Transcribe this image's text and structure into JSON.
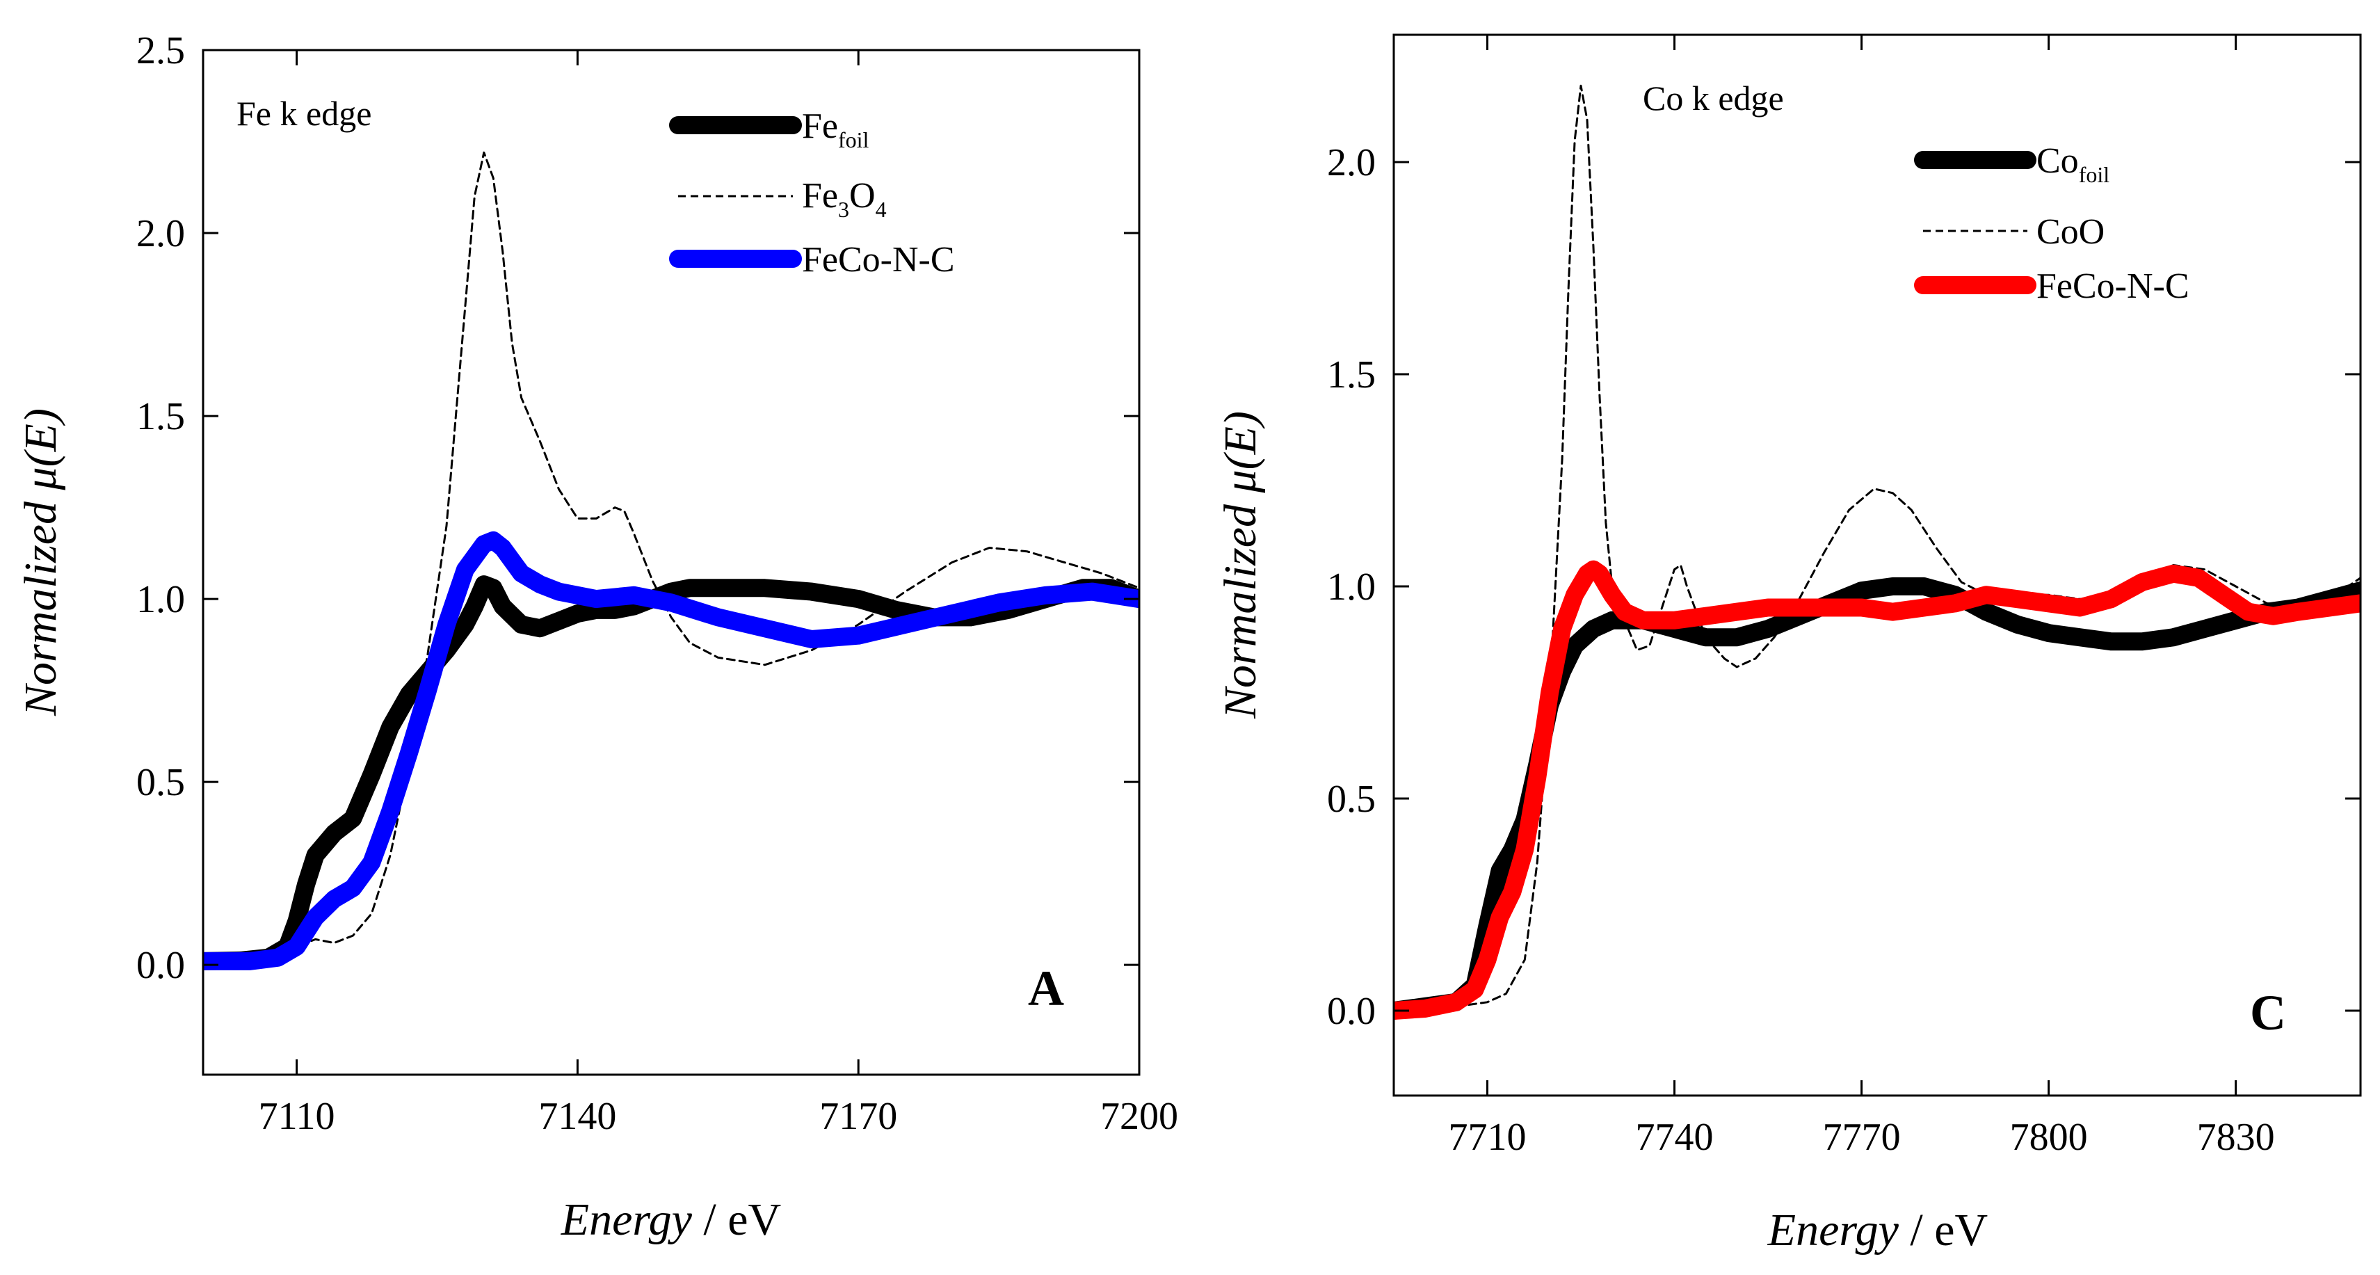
{
  "chart_data": [
    {
      "type": "line",
      "panel_label": "A",
      "annotation": "Fe k edge",
      "xlabel_italic": "Energy",
      "xlabel_unit": " / eV",
      "ylabel": "Normalized μ(E)",
      "xlim": [
        7100,
        7200
      ],
      "ylim": [
        -0.3,
        2.5
      ],
      "xticks": [
        7110,
        7140,
        7170,
        7200
      ],
      "xticklabels": [
        "7110",
        "7140",
        "7170",
        "7200"
      ],
      "yticks": [
        0.0,
        0.5,
        1.0,
        1.5,
        2.0,
        2.5
      ],
      "yticklabels": [
        "0.0",
        "0.5",
        "1.0",
        "1.5",
        "2.0",
        "2.5"
      ],
      "legend_position": "top-right",
      "series": [
        {
          "name": "Fe_foil",
          "legend_main": "Fe",
          "legend_sub": "foil",
          "legend_sub2": "",
          "legend_tail": "",
          "color": "#000000",
          "style": "thick",
          "points": [
            [
              7100,
              0.01
            ],
            [
              7104,
              0.012
            ],
            [
              7107,
              0.02
            ],
            [
              7109,
              0.05
            ],
            [
              7110,
              0.12
            ],
            [
              7111,
              0.22
            ],
            [
              7112,
              0.3
            ],
            [
              7114,
              0.36
            ],
            [
              7116,
              0.4
            ],
            [
              7118,
              0.52
            ],
            [
              7120,
              0.65
            ],
            [
              7122,
              0.74
            ],
            [
              7124,
              0.8
            ],
            [
              7126,
              0.86
            ],
            [
              7128,
              0.93
            ],
            [
              7129,
              0.98
            ],
            [
              7130,
              1.04
            ],
            [
              7131,
              1.03
            ],
            [
              7132,
              0.98
            ],
            [
              7134,
              0.93
            ],
            [
              7136,
              0.92
            ],
            [
              7138,
              0.94
            ],
            [
              7140,
              0.96
            ],
            [
              7142,
              0.97
            ],
            [
              7144,
              0.97
            ],
            [
              7146,
              0.98
            ],
            [
              7148,
              1.0
            ],
            [
              7150,
              1.02
            ],
            [
              7152,
              1.03
            ],
            [
              7155,
              1.03
            ],
            [
              7160,
              1.03
            ],
            [
              7165,
              1.02
            ],
            [
              7170,
              1.0
            ],
            [
              7174,
              0.97
            ],
            [
              7178,
              0.95
            ],
            [
              7182,
              0.95
            ],
            [
              7186,
              0.97
            ],
            [
              7190,
              1.0
            ],
            [
              7194,
              1.03
            ],
            [
              7197,
              1.03
            ],
            [
              7200,
              1.0
            ]
          ]
        },
        {
          "name": "Fe3O4",
          "legend_main": "Fe",
          "legend_sub": "3",
          "legend_sub2": "4",
          "legend_tail": "O",
          "color": "#000000",
          "style": "dashed",
          "points": [
            [
              7100,
              0.01
            ],
            [
              7105,
              0.01
            ],
            [
              7108,
              0.02
            ],
            [
              7110,
              0.05
            ],
            [
              7112,
              0.07
            ],
            [
              7114,
              0.06
            ],
            [
              7116,
              0.08
            ],
            [
              7118,
              0.14
            ],
            [
              7120,
              0.3
            ],
            [
              7122,
              0.55
            ],
            [
              7124,
              0.85
            ],
            [
              7126,
              1.2
            ],
            [
              7127,
              1.5
            ],
            [
              7128,
              1.8
            ],
            [
              7129,
              2.1
            ],
            [
              7130,
              2.22
            ],
            [
              7131,
              2.15
            ],
            [
              7132,
              1.95
            ],
            [
              7133,
              1.7
            ],
            [
              7134,
              1.55
            ],
            [
              7136,
              1.43
            ],
            [
              7138,
              1.3
            ],
            [
              7140,
              1.22
            ],
            [
              7142,
              1.22
            ],
            [
              7144,
              1.25
            ],
            [
              7145,
              1.24
            ],
            [
              7146,
              1.18
            ],
            [
              7148,
              1.05
            ],
            [
              7150,
              0.95
            ],
            [
              7152,
              0.88
            ],
            [
              7155,
              0.84
            ],
            [
              7160,
              0.82
            ],
            [
              7165,
              0.86
            ],
            [
              7170,
              0.93
            ],
            [
              7175,
              1.02
            ],
            [
              7180,
              1.1
            ],
            [
              7184,
              1.14
            ],
            [
              7188,
              1.13
            ],
            [
              7192,
              1.1
            ],
            [
              7196,
              1.07
            ],
            [
              7200,
              1.03
            ]
          ]
        },
        {
          "name": "FeCo-N-C",
          "legend_main": "FeCo-N-C",
          "legend_sub": "",
          "legend_sub2": "",
          "legend_tail": "",
          "color": "#0000ff",
          "style": "thick",
          "points": [
            [
              7100,
              0.01
            ],
            [
              7105,
              0.01
            ],
            [
              7108,
              0.02
            ],
            [
              7110,
              0.05
            ],
            [
              7112,
              0.13
            ],
            [
              7114,
              0.18
            ],
            [
              7116,
              0.21
            ],
            [
              7118,
              0.28
            ],
            [
              7120,
              0.42
            ],
            [
              7122,
              0.58
            ],
            [
              7124,
              0.75
            ],
            [
              7126,
              0.93
            ],
            [
              7128,
              1.08
            ],
            [
              7130,
              1.15
            ],
            [
              7131,
              1.16
            ],
            [
              7132,
              1.14
            ],
            [
              7134,
              1.07
            ],
            [
              7136,
              1.04
            ],
            [
              7138,
              1.02
            ],
            [
              7142,
              1.0
            ],
            [
              7146,
              1.01
            ],
            [
              7150,
              0.99
            ],
            [
              7155,
              0.95
            ],
            [
              7160,
              0.92
            ],
            [
              7165,
              0.89
            ],
            [
              7170,
              0.9
            ],
            [
              7175,
              0.93
            ],
            [
              7180,
              0.96
            ],
            [
              7185,
              0.99
            ],
            [
              7190,
              1.01
            ],
            [
              7195,
              1.02
            ],
            [
              7200,
              1.0
            ]
          ]
        }
      ]
    },
    {
      "type": "line",
      "panel_label": "C",
      "annotation": "Co k edge",
      "xlabel_italic": "Energy",
      "xlabel_unit": " / eV",
      "ylabel": "Normalized μ(E)",
      "xlim": [
        7695,
        7850
      ],
      "ylim": [
        -0.2,
        2.3
      ],
      "xticks": [
        7710,
        7740,
        7770,
        7800,
        7830
      ],
      "xticklabels": [
        "7710",
        "7740",
        "7770",
        "7800",
        "7830"
      ],
      "yticks": [
        0.0,
        0.5,
        1.0,
        1.5,
        2.0
      ],
      "yticklabels": [
        "0.0",
        "0.5",
        "1.0",
        "1.5",
        "2.0"
      ],
      "legend_position": "top-right",
      "series": [
        {
          "name": "Co_foil",
          "legend_main": "Co",
          "legend_sub": "foil",
          "legend_sub2": "",
          "legend_tail": "",
          "color": "#000000",
          "style": "thick",
          "points": [
            [
              7695,
              0.0
            ],
            [
              7700,
              0.01
            ],
            [
              7705,
              0.02
            ],
            [
              7708,
              0.06
            ],
            [
              7710,
              0.2
            ],
            [
              7712,
              0.33
            ],
            [
              7714,
              0.38
            ],
            [
              7716,
              0.45
            ],
            [
              7718,
              0.58
            ],
            [
              7720,
              0.72
            ],
            [
              7722,
              0.8
            ],
            [
              7724,
              0.86
            ],
            [
              7727,
              0.9
            ],
            [
              7730,
              0.92
            ],
            [
              7735,
              0.92
            ],
            [
              7740,
              0.9
            ],
            [
              7745,
              0.88
            ],
            [
              7750,
              0.88
            ],
            [
              7755,
              0.9
            ],
            [
              7760,
              0.93
            ],
            [
              7765,
              0.96
            ],
            [
              7770,
              0.99
            ],
            [
              7775,
              1.0
            ],
            [
              7780,
              1.0
            ],
            [
              7785,
              0.98
            ],
            [
              7790,
              0.94
            ],
            [
              7795,
              0.91
            ],
            [
              7800,
              0.89
            ],
            [
              7805,
              0.88
            ],
            [
              7810,
              0.87
            ],
            [
              7815,
              0.87
            ],
            [
              7820,
              0.88
            ],
            [
              7825,
              0.9
            ],
            [
              7830,
              0.92
            ],
            [
              7835,
              0.94
            ],
            [
              7840,
              0.95
            ],
            [
              7845,
              0.97
            ],
            [
              7850,
              0.99
            ]
          ]
        },
        {
          "name": "CoO",
          "legend_main": "CoO",
          "legend_sub": "",
          "legend_sub2": "",
          "legend_tail": "",
          "color": "#000000",
          "style": "dashed",
          "points": [
            [
              7695,
              0.0
            ],
            [
              7705,
              0.01
            ],
            [
              7710,
              0.02
            ],
            [
              7713,
              0.04
            ],
            [
              7716,
              0.12
            ],
            [
              7718,
              0.35
            ],
            [
              7720,
              0.75
            ],
            [
              7722,
              1.3
            ],
            [
              7723,
              1.7
            ],
            [
              7724,
              2.05
            ],
            [
              7725,
              2.18
            ],
            [
              7726,
              2.1
            ],
            [
              7727,
              1.8
            ],
            [
              7728,
              1.45
            ],
            [
              7729,
              1.15
            ],
            [
              7730,
              1.0
            ],
            [
              7731,
              0.98
            ],
            [
              7732,
              0.92
            ],
            [
              7734,
              0.85
            ],
            [
              7736,
              0.86
            ],
            [
              7738,
              0.95
            ],
            [
              7740,
              1.04
            ],
            [
              7741,
              1.05
            ],
            [
              7742,
              1.0
            ],
            [
              7745,
              0.88
            ],
            [
              7748,
              0.83
            ],
            [
              7750,
              0.81
            ],
            [
              7753,
              0.83
            ],
            [
              7756,
              0.88
            ],
            [
              7760,
              0.97
            ],
            [
              7764,
              1.08
            ],
            [
              7768,
              1.18
            ],
            [
              7772,
              1.23
            ],
            [
              7775,
              1.22
            ],
            [
              7778,
              1.18
            ],
            [
              7782,
              1.09
            ],
            [
              7786,
              1.01
            ],
            [
              7790,
              0.98
            ],
            [
              7795,
              0.98
            ],
            [
              7800,
              0.98
            ],
            [
              7805,
              0.97
            ],
            [
              7810,
              0.98
            ],
            [
              7815,
              1.02
            ],
            [
              7820,
              1.05
            ],
            [
              7825,
              1.04
            ],
            [
              7830,
              1.0
            ],
            [
              7835,
              0.96
            ],
            [
              7840,
              0.95
            ],
            [
              7845,
              0.97
            ],
            [
              7850,
              1.02
            ]
          ]
        },
        {
          "name": "FeCo-N-C",
          "legend_main": "FeCo-N-C",
          "legend_sub": "",
          "legend_sub2": "",
          "legend_tail": "",
          "color": "#ff0000",
          "style": "thick",
          "points": [
            [
              7695,
              0.0
            ],
            [
              7700,
              0.005
            ],
            [
              7705,
              0.02
            ],
            [
              7708,
              0.05
            ],
            [
              7710,
              0.12
            ],
            [
              7712,
              0.22
            ],
            [
              7714,
              0.28
            ],
            [
              7716,
              0.38
            ],
            [
              7718,
              0.55
            ],
            [
              7720,
              0.75
            ],
            [
              7722,
              0.9
            ],
            [
              7724,
              0.98
            ],
            [
              7726,
              1.03
            ],
            [
              7727,
              1.04
            ],
            [
              7728,
              1.03
            ],
            [
              7730,
              0.98
            ],
            [
              7732,
              0.94
            ],
            [
              7735,
              0.92
            ],
            [
              7740,
              0.92
            ],
            [
              7745,
              0.93
            ],
            [
              7750,
              0.94
            ],
            [
              7755,
              0.95
            ],
            [
              7760,
              0.95
            ],
            [
              7765,
              0.95
            ],
            [
              7770,
              0.95
            ],
            [
              7775,
              0.94
            ],
            [
              7780,
              0.95
            ],
            [
              7785,
              0.96
            ],
            [
              7790,
              0.98
            ],
            [
              7795,
              0.97
            ],
            [
              7800,
              0.96
            ],
            [
              7805,
              0.95
            ],
            [
              7810,
              0.97
            ],
            [
              7815,
              1.01
            ],
            [
              7820,
              1.03
            ],
            [
              7824,
              1.02
            ],
            [
              7828,
              0.98
            ],
            [
              7832,
              0.94
            ],
            [
              7836,
              0.93
            ],
            [
              7840,
              0.94
            ],
            [
              7845,
              0.95
            ],
            [
              7850,
              0.96
            ]
          ]
        }
      ]
    }
  ]
}
